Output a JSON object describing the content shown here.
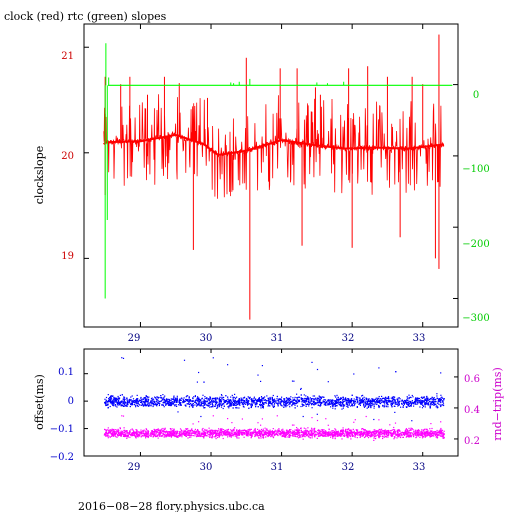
{
  "chart_data": [
    {
      "type": "line",
      "title": "clock (red) rtc (green) slopes",
      "ylabel": "clockslope",
      "xlim": [
        28.2,
        33.5
      ],
      "x_ticks": [
        29,
        30,
        31,
        32,
        33
      ],
      "ylim_left": [
        18.35,
        21.22
      ],
      "y_ticks_left": [
        19,
        20,
        21
      ],
      "ylim_right": [
        -340,
        85
      ],
      "y_ticks_right": [
        0,
        -100,
        -200,
        -300
      ],
      "x_range": [
        28.48,
        33.3
      ],
      "colors": {
        "left_axis_ticks": "#cc0000",
        "right_axis_ticks": "#00cc00",
        "x_ticks": "#000080"
      },
      "series": [
        {
          "color": "#ff0000",
          "axis": "left",
          "baseline": [
            [
              28.5,
              20.1
            ],
            [
              29.0,
              20.11
            ],
            [
              29.5,
              20.17
            ],
            [
              29.9,
              20.08
            ],
            [
              30.1,
              19.98
            ],
            [
              30.5,
              20.02
            ],
            [
              31.0,
              20.12
            ],
            [
              31.5,
              20.07
            ],
            [
              31.9,
              20.04
            ],
            [
              32.3,
              20.05
            ],
            [
              32.8,
              20.04
            ],
            [
              33.3,
              20.08
            ]
          ],
          "spread_typical": 0.2,
          "spikes": [
            [
              28.5,
              20.72
            ],
            [
              28.5,
              19.6
            ],
            [
              28.72,
              20.65
            ],
            [
              28.85,
              20.72
            ],
            [
              29.1,
              20.55
            ],
            [
              29.34,
              20.72
            ],
            [
              29.55,
              20.66
            ],
            [
              29.75,
              19.08
            ],
            [
              29.95,
              20.52
            ],
            [
              30.5,
              20.9
            ],
            [
              30.55,
              18.42
            ],
            [
              30.98,
              20.8
            ],
            [
              31.22,
              20.8
            ],
            [
              31.29,
              19.12
            ],
            [
              31.48,
              20.62
            ],
            [
              31.55,
              20.55
            ],
            [
              31.95,
              20.8
            ],
            [
              32.0,
              19.1
            ],
            [
              32.22,
              20.82
            ],
            [
              32.5,
              20.72
            ],
            [
              32.68,
              19.2
            ],
            [
              32.85,
              20.72
            ],
            [
              33.0,
              20.65
            ],
            [
              33.18,
              19.0
            ],
            [
              33.23,
              21.12
            ],
            [
              33.23,
              18.9
            ]
          ]
        },
        {
          "color": "#00ff00",
          "axis": "right",
          "baseline_value": -1,
          "spikes": [
            [
              28.5,
              -300
            ],
            [
              28.51,
              58
            ],
            [
              28.53,
              -190
            ],
            [
              28.55,
              10
            ],
            [
              30.28,
              3
            ],
            [
              30.32,
              2
            ],
            [
              30.4,
              4
            ],
            [
              30.55,
              8
            ],
            [
              31.5,
              3
            ],
            [
              31.65,
              2
            ],
            [
              31.88,
              4
            ]
          ]
        }
      ]
    },
    {
      "type": "scatter",
      "ylabel_left": "offset(ms)",
      "ylabel_right": "rnd−trip(ms)",
      "xlim": [
        28.2,
        33.5
      ],
      "x_ticks": [
        29,
        30,
        31,
        32,
        33
      ],
      "ylim_left": [
        -0.2,
        0.19
      ],
      "y_ticks_left": [
        0.1,
        0,
        -0.1,
        -0.2
      ],
      "ylim_right": [
        0.09,
        0.78
      ],
      "y_ticks_right": [
        0.6,
        0.4,
        0.2
      ],
      "colors": {
        "left_axis_ticks": "#0000cc",
        "right_axis_ticks": "#cc00cc",
        "x_ticks": "#000080"
      },
      "series": [
        {
          "color": "#0000ff",
          "axis": "left",
          "x_range": [
            28.48,
            33.3
          ],
          "center": 0.0,
          "band_halfwidth": 0.03,
          "outlier_max": 0.17
        },
        {
          "color": "#ff00ff",
          "axis": "right",
          "x_range": [
            28.48,
            33.3
          ],
          "center": 0.24,
          "band_halfwidth": 0.04,
          "outlier_max": 0.36
        }
      ]
    }
  ],
  "tick_labels": {
    "top_x": [
      "29",
      "30",
      "31",
      "32",
      "33"
    ],
    "top_left": [
      "19",
      "20",
      "21"
    ],
    "top_right": [
      "0",
      "−100",
      "−200",
      "−300"
    ],
    "bot_x": [
      "29",
      "30",
      "31",
      "32",
      "33"
    ],
    "bot_left": [
      "0.1",
      "0",
      "−0.1",
      "−0.2"
    ],
    "bot_right": [
      "0.6",
      "0.4",
      "0.2"
    ]
  },
  "footer": "2016−08−28 flory.physics.ubc.ca"
}
